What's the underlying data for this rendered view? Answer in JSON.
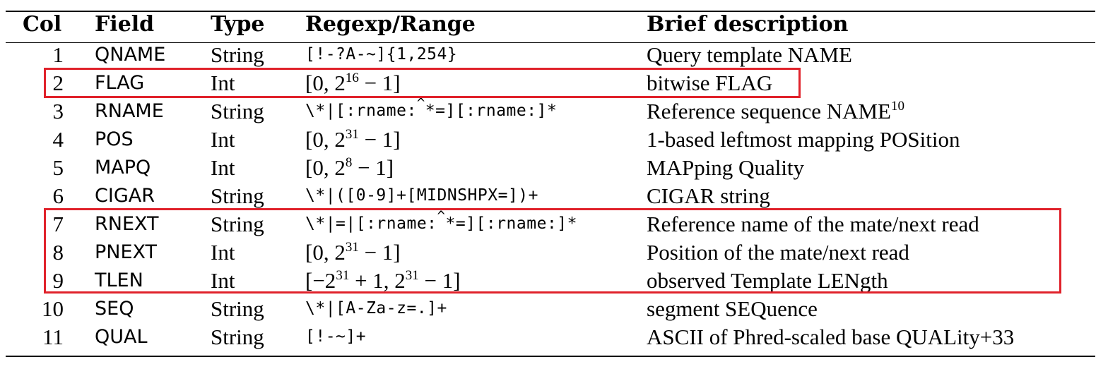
{
  "table": {
    "headers": {
      "col": "Col",
      "field": "Field",
      "type": "Type",
      "regexp": "Regexp/Range",
      "description": "Brief description"
    },
    "rows": [
      {
        "col": "1",
        "field": "QNAME",
        "type": "String",
        "regexp": "[!-?A-~]{1,254}",
        "description": "Query template NAME"
      },
      {
        "col": "2",
        "field": "FLAG",
        "type": "Int",
        "regexp": "[0, 2^16 − 1]",
        "description": "bitwise FLAG"
      },
      {
        "col": "3",
        "field": "RNAME",
        "type": "String",
        "regexp": "\\*|[:rname:^*=][:rname:]*",
        "description": "Reference sequence NAME^10"
      },
      {
        "col": "4",
        "field": "POS",
        "type": "Int",
        "regexp": "[0, 2^31 − 1]",
        "description": "1-based leftmost mapping POSition"
      },
      {
        "col": "5",
        "field": "MAPQ",
        "type": "Int",
        "regexp": "[0, 2^8 − 1]",
        "description": "MAPping Quality"
      },
      {
        "col": "6",
        "field": "CIGAR",
        "type": "String",
        "regexp": "\\*|([0-9]+[MIDNSHPX=])+",
        "description": "CIGAR string"
      },
      {
        "col": "7",
        "field": "RNEXT",
        "type": "String",
        "regexp": "\\*|=|[:rname:^*=][:rname:]*",
        "description": "Reference name of the mate/next read"
      },
      {
        "col": "8",
        "field": "PNEXT",
        "type": "Int",
        "regexp": "[0, 2^31 − 1]",
        "description": "Position of the mate/next read"
      },
      {
        "col": "9",
        "field": "TLEN",
        "type": "Int",
        "regexp": "[−2^31 + 1, 2^31 − 1]",
        "description": "observed Template LENgth"
      },
      {
        "col": "10",
        "field": "SEQ",
        "type": "String",
        "regexp": "\\*|[A-Za-z=.]+",
        "description": "segment SEQuence"
      },
      {
        "col": "11",
        "field": "QUAL",
        "type": "String",
        "regexp": "[!-~]+",
        "description": "ASCII of Phred-scaled base QUALity+33"
      }
    ],
    "highlighted_rows": [
      "2",
      "7",
      "8",
      "9"
    ],
    "highlight_color": "#e0222b",
    "rule_color": "#000000"
  },
  "fragments": {
    "r2_pre": "[0, 2",
    "r2_sup": "16",
    "r2_post": " − 1]",
    "r3_desc_main": "Reference sequence NAME",
    "r3_desc_sup": "10",
    "r3_regex_a": "\\*|[:rname:",
    "r3_regex_caret": "^",
    "r3_regex_b": "*=][:rname:]*",
    "r4_pre": "[0, 2",
    "r4_sup": "31",
    "r4_post": " − 1]",
    "r5_pre": "[0, 2",
    "r5_sup": "8",
    "r5_post": " − 1]",
    "r7_regex_a": "\\*|=|[:rname:",
    "r7_regex_caret": "^",
    "r7_regex_b": "*=][:rname:]*",
    "r8_pre": "[0, 2",
    "r8_sup": "31",
    "r8_post": " − 1]",
    "r9_pre": "[−2",
    "r9_sup1": "31",
    "r9_mid": " + 1, 2",
    "r9_sup2": "31",
    "r9_post": " − 1]"
  }
}
